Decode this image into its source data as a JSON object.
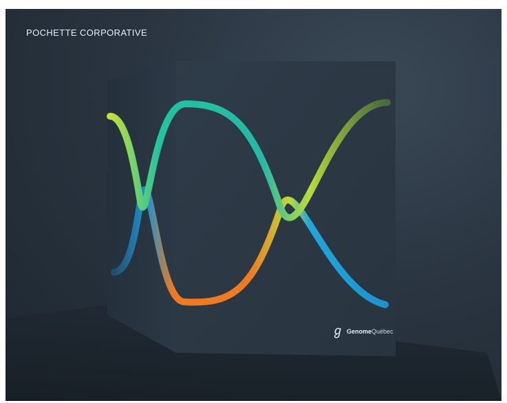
{
  "caption": "POCHETTE CORPORATIVE",
  "logo": {
    "icon": "genome-helix-g-icon",
    "brand_bold": "Genome",
    "brand_light": "Québec"
  },
  "colors": {
    "background": "#2a3541",
    "strand_a": [
      "#c6e03a",
      "#20c4a0",
      "#2fb8a8",
      "#c6e03a",
      "#6b9a3a"
    ],
    "strand_b": [
      "#1c93d0",
      "#f07a20",
      "#f07a20",
      "#20a6d8",
      "#1c93d0"
    ],
    "rungs": "#1b8fd6"
  }
}
